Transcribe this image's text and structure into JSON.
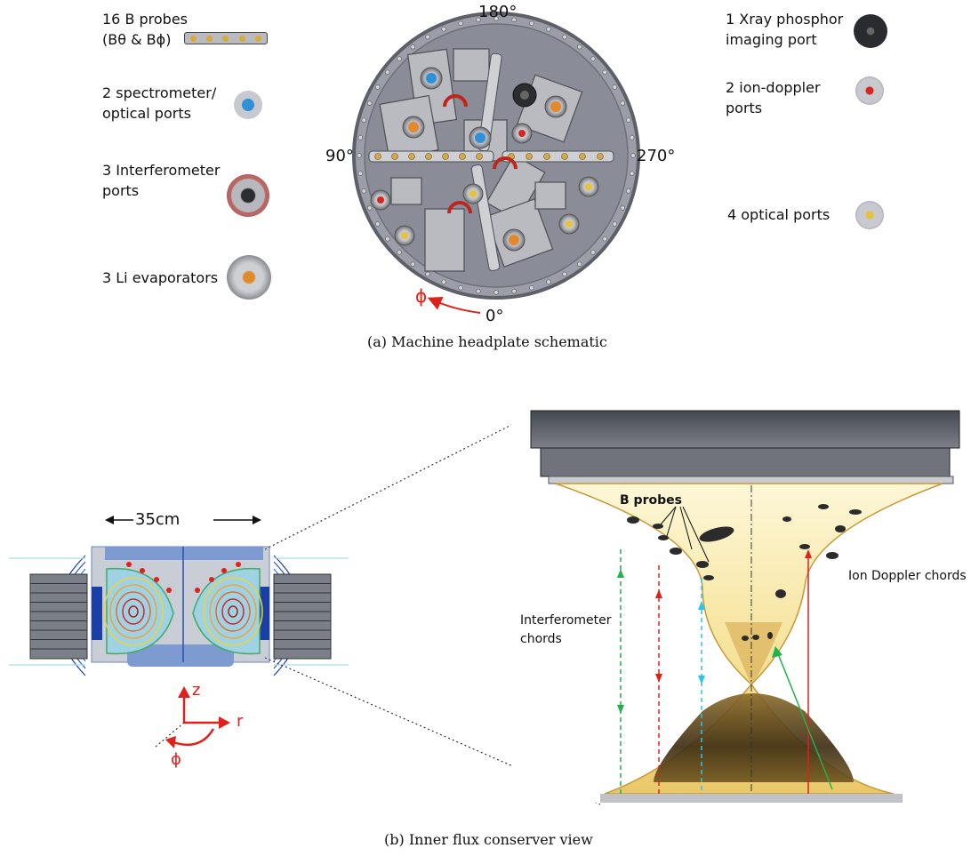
{
  "part_a": {
    "caption": "(a) Machine headplate schematic",
    "angles": {
      "top": "180°",
      "left": "90°",
      "right": "270°",
      "bottom": "0°"
    },
    "phi_symbol": "ϕ",
    "legend_left": [
      {
        "line1": "16 B probes",
        "line2": "(Bθ & Bϕ)",
        "icon": "probe-strip-icon"
      },
      {
        "line1": "2 spectrometer/",
        "line2": "optical ports",
        "icon": "blue-port-icon"
      },
      {
        "line1": "3 Interferometer",
        "line2": "ports",
        "icon": "interferometer-port-icon"
      },
      {
        "line1": "3 Li evaporators",
        "line2": "",
        "icon": "li-evaporator-icon"
      }
    ],
    "legend_right": [
      {
        "line1": "1 Xray phosphor",
        "line2": "imaging port",
        "icon": "xray-port-icon"
      },
      {
        "line1": "2 ion-doppler",
        "line2": "ports",
        "icon": "ion-doppler-port-icon"
      },
      {
        "line1": "4 optical ports",
        "line2": "",
        "icon": "optical-port-icon"
      }
    ],
    "colors": {
      "plate": "#8c8f99",
      "plate_edge": "#5d6068",
      "blue_port": "#2f8fd8",
      "orange_port": "#e08a2b",
      "phi_red": "#e0201b"
    }
  },
  "part_b": {
    "caption": "(b)  Inner flux conserver view",
    "dimension": "35cm",
    "axes": {
      "z": "z",
      "r": "r",
      "phi": "ϕ"
    },
    "labels": {
      "b_probes": "B probes",
      "ion_doppler": "Ion Doppler chords",
      "interferometer_line1": "Interferometer",
      "interferometer_line2": "chords"
    },
    "colors": {
      "green_chord": "#22b14c",
      "red_chord": "#e0201b",
      "cyan_chord": "#2ec4ea",
      "coil": "#7b7f88",
      "steel": "#5a5e66"
    }
  }
}
